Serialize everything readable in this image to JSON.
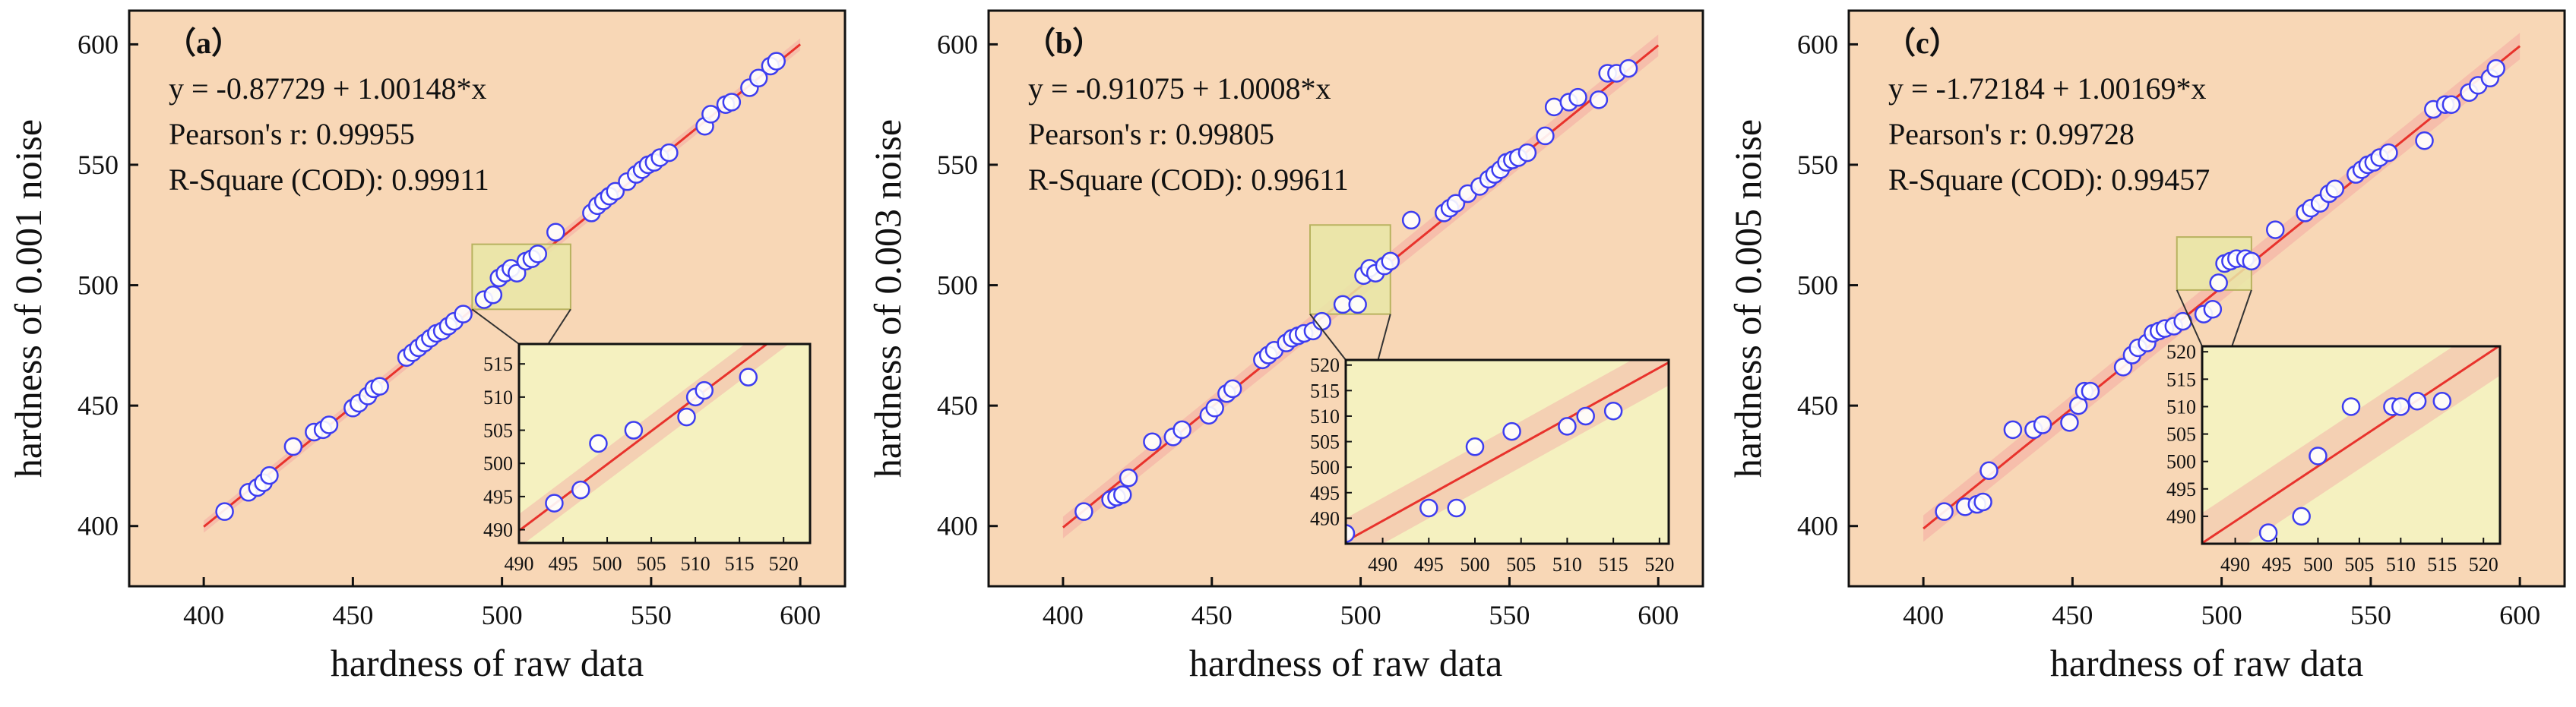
{
  "colors": {
    "plot_bg": "#f8d7b6",
    "inset_bg": "#f5f1c0",
    "band": "#f4a9a3",
    "fit_line": "#e8322c",
    "marker_edge": "#3d3df0",
    "marker_fill": "#ffffff",
    "zoom_box": "#e9e7a7",
    "zoom_box_edge": "#b8b25f",
    "axis": "#111111"
  },
  "chart_data": [
    {
      "type": "scatter",
      "panel_label": "（a）",
      "title": "",
      "xlabel": "hardness of raw data",
      "ylabel": "hardness of 0.001 noise",
      "xlim": [
        375,
        615
      ],
      "ylim": [
        375,
        614
      ],
      "xticks": [
        400,
        450,
        500,
        550,
        600
      ],
      "yticks": [
        400,
        450,
        500,
        550,
        600
      ],
      "annotations": [
        "y = -0.87729 + 1.00148*x",
        "Pearson's r: 0.99955",
        "R-Square (COD): 0.99911"
      ],
      "fit": {
        "intercept": -0.87729,
        "slope": 1.00148
      },
      "band_halfwidth": 2.5,
      "zoom_region": {
        "x": [
          490,
          523
        ],
        "y": [
          490,
          517
        ]
      },
      "x": [
        407,
        415,
        418,
        420,
        422,
        430,
        437,
        440,
        442,
        450,
        452,
        455,
        457,
        459,
        468,
        470,
        472,
        474,
        476,
        478,
        480,
        482,
        484,
        487,
        494,
        497,
        499,
        501,
        503,
        505,
        508,
        510,
        512,
        518,
        530,
        532,
        534,
        536,
        538,
        542,
        545,
        547,
        549,
        551,
        553,
        556,
        568,
        570,
        575,
        577,
        583,
        586,
        590,
        592
      ],
      "y": [
        406,
        414,
        416,
        418,
        421,
        433,
        439,
        440,
        442,
        449,
        451,
        454,
        457,
        458,
        470,
        472,
        474,
        476,
        478,
        480,
        481,
        483,
        485,
        488,
        494,
        496,
        503,
        505,
        507,
        505,
        510,
        511,
        513,
        522,
        530,
        533,
        535,
        537,
        539,
        543,
        546,
        548,
        550,
        551,
        553,
        555,
        566,
        571,
        575,
        576,
        582,
        586,
        591,
        593
      ],
      "inset": {
        "xlim": [
          490,
          523
        ],
        "ylim": [
          488,
          518
        ],
        "xticks": [
          490,
          495,
          500,
          505,
          510,
          515,
          520
        ],
        "yticks": [
          490,
          495,
          500,
          505,
          510,
          515
        ],
        "x": [
          494,
          497,
          499,
          503,
          509,
          510,
          511,
          516
        ],
        "y": [
          494,
          496,
          503,
          505,
          507,
          510,
          511,
          513
        ]
      }
    },
    {
      "type": "scatter",
      "panel_label": "（b）",
      "title": "",
      "xlabel": "hardness of raw data",
      "ylabel": "hardness of 0.003 noise",
      "xlim": [
        375,
        615
      ],
      "ylim": [
        375,
        614
      ],
      "xticks": [
        400,
        450,
        500,
        550,
        600
      ],
      "yticks": [
        400,
        450,
        500,
        550,
        600
      ],
      "annotations": [
        "y = -0.91075 + 1.0008*x",
        "Pearson's r: 0.99805",
        "R-Square (COD): 0.99611"
      ],
      "fit": {
        "intercept": -0.91075,
        "slope": 1.0008
      },
      "band_halfwidth": 4.5,
      "zoom_region": {
        "x": [
          483,
          510
        ],
        "y": [
          488,
          525
        ]
      },
      "x": [
        407,
        416,
        418,
        420,
        422,
        430,
        437,
        440,
        449,
        451,
        455,
        457,
        467,
        469,
        471,
        475,
        477,
        479,
        481,
        484,
        487,
        494,
        499,
        501,
        503,
        505,
        508,
        510,
        517,
        528,
        530,
        532,
        536,
        540,
        543,
        545,
        547,
        549,
        551,
        553,
        556,
        562,
        565,
        570,
        573,
        580,
        583,
        586,
        590
      ],
      "y": [
        406,
        411,
        412,
        413,
        420,
        435,
        437,
        440,
        446,
        449,
        455,
        457,
        469,
        471,
        473,
        476,
        478,
        479,
        480,
        481,
        485,
        492,
        492,
        504,
        507,
        505,
        508,
        510,
        527,
        530,
        532,
        534,
        538,
        541,
        544,
        546,
        548,
        551,
        552,
        553,
        555,
        562,
        574,
        576,
        578,
        577,
        588,
        588,
        590
      ],
      "inset": {
        "xlim": [
          486,
          521
        ],
        "ylim": [
          485,
          521
        ],
        "xticks": [
          490,
          495,
          500,
          505,
          510,
          515,
          520
        ],
        "yticks": [
          490,
          495,
          500,
          505,
          510,
          515,
          520
        ],
        "x": [
          486,
          495,
          498,
          500,
          504,
          510,
          512,
          515
        ],
        "y": [
          487,
          492,
          492,
          504,
          507,
          508,
          510,
          511
        ]
      }
    },
    {
      "type": "scatter",
      "panel_label": "（c）",
      "title": "",
      "xlabel": "hardness of raw data",
      "ylabel": "hardness of 0.005 noise",
      "xlim": [
        375,
        615
      ],
      "ylim": [
        375,
        614
      ],
      "xticks": [
        400,
        450,
        500,
        550,
        600
      ],
      "yticks": [
        400,
        450,
        500,
        550,
        600
      ],
      "annotations": [
        "y = -1.72184 + 1.00169*x",
        "Pearson's r: 0.99728",
        "R-Square (COD): 0.99457"
      ],
      "fit": {
        "intercept": -1.72184,
        "slope": 1.00169
      },
      "band_halfwidth": 5.5,
      "zoom_region": {
        "x": [
          485,
          510
        ],
        "y": [
          498,
          520
        ]
      },
      "x": [
        407,
        414,
        418,
        420,
        422,
        430,
        437,
        440,
        449,
        452,
        454,
        456,
        467,
        470,
        472,
        475,
        477,
        479,
        481,
        484,
        487,
        494,
        497,
        499,
        501,
        503,
        505,
        508,
        510,
        518,
        528,
        530,
        533,
        536,
        538,
        545,
        547,
        549,
        551,
        553,
        556,
        568,
        571,
        575,
        577,
        583,
        586,
        590,
        592
      ],
      "y": [
        406,
        408,
        409,
        410,
        423,
        440,
        440,
        442,
        443,
        450,
        456,
        456,
        466,
        471,
        474,
        476,
        480,
        481,
        482,
        483,
        485,
        488,
        490,
        501,
        509,
        510,
        511,
        511,
        510,
        523,
        530,
        532,
        534,
        538,
        540,
        546,
        548,
        550,
        551,
        553,
        555,
        560,
        573,
        575,
        575,
        580,
        583,
        586,
        590
      ],
      "inset": {
        "xlim": [
          486,
          522
        ],
        "ylim": [
          485,
          521
        ],
        "xticks": [
          490,
          495,
          500,
          505,
          510,
          515,
          520
        ],
        "yticks": [
          490,
          495,
          500,
          505,
          510,
          515,
          520
        ],
        "x": [
          494,
          498,
          500,
          504,
          509,
          510,
          512,
          515
        ],
        "y": [
          487,
          490,
          501,
          510,
          510,
          510,
          511,
          511
        ]
      }
    }
  ]
}
